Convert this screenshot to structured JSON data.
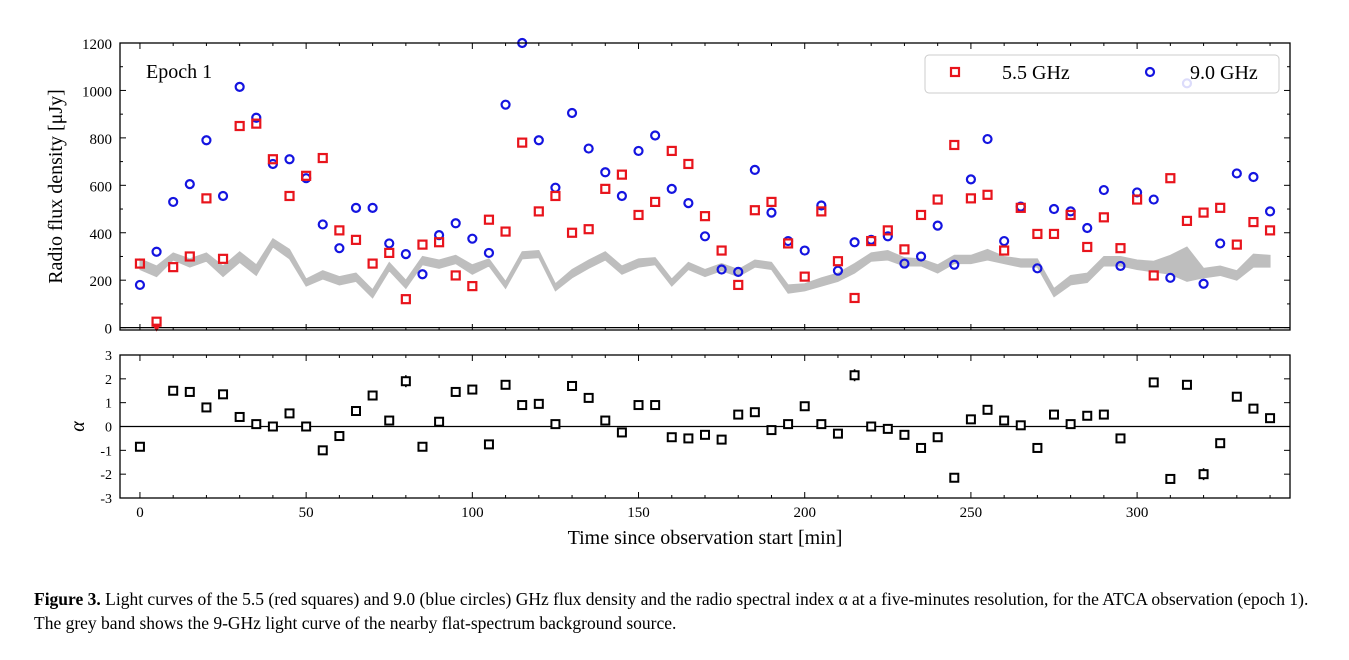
{
  "figure": {
    "caption_label": "Figure 3.",
    "caption_text": "Light curves of the 5.5 (red squares) and 9.0 (blue circles) GHz flux density and the radio spectral index α at a five-minutes resolution, for the ATCA observation (epoch 1). The grey band shows the 9-GHz light curve of the nearby flat-spectrum background source."
  },
  "chart_data": [
    {
      "type": "scatter",
      "annotation": "Epoch 1",
      "ylabel": "Radio flux density [μJy]",
      "xlim": [
        -6,
        346
      ],
      "ylim": [
        -10,
        1200
      ],
      "yticks": [
        0,
        200,
        400,
        600,
        800,
        1000,
        1200
      ],
      "xticks": [
        0,
        50,
        100,
        150,
        200,
        250,
        300
      ],
      "legend": "top-right",
      "grid": false,
      "colors": {
        "s55": "#e8141c",
        "s90": "#1414e0",
        "band": "#bebebe"
      },
      "series": [
        {
          "name": "5.5 GHz",
          "marker": "square",
          "x": [
            0,
            5,
            10,
            15,
            20,
            25,
            30,
            35,
            40,
            45,
            50,
            55,
            60,
            65,
            70,
            75,
            80,
            85,
            90,
            95,
            100,
            105,
            110,
            115,
            120,
            125,
            130,
            135,
            140,
            145,
            150,
            155,
            160,
            165,
            170,
            175,
            180,
            185,
            190,
            195,
            200,
            205,
            210,
            215,
            220,
            225,
            230,
            235,
            240,
            245,
            250,
            255,
            260,
            265,
            270,
            275,
            280,
            285,
            290,
            295,
            300,
            305,
            310,
            315,
            320,
            325,
            330,
            335,
            340
          ],
          "y": [
            270,
            25,
            255,
            300,
            545,
            290,
            850,
            860,
            710,
            555,
            640,
            715,
            410,
            370,
            270,
            315,
            120,
            350,
            360,
            220,
            175,
            455,
            405,
            780,
            490,
            555,
            400,
            415,
            585,
            645,
            475,
            530,
            745,
            690,
            470,
            325,
            180,
            495,
            530,
            355,
            215,
            490,
            280,
            125,
            365,
            410,
            330,
            475,
            540,
            770,
            545,
            560,
            325,
            505,
            395,
            395,
            475,
            340,
            465,
            335,
            540,
            220,
            630,
            450,
            485,
            505,
            350,
            445,
            410
          ]
        },
        {
          "name": "9.0 GHz",
          "marker": "circle",
          "x": [
            0,
            5,
            10,
            15,
            20,
            25,
            30,
            35,
            40,
            45,
            50,
            55,
            60,
            65,
            70,
            75,
            80,
            85,
            90,
            95,
            100,
            105,
            110,
            115,
            120,
            125,
            130,
            135,
            140,
            145,
            150,
            155,
            160,
            165,
            170,
            175,
            180,
            185,
            190,
            195,
            200,
            205,
            210,
            215,
            220,
            225,
            230,
            235,
            240,
            245,
            250,
            255,
            260,
            265,
            270,
            275,
            280,
            285,
            290,
            295,
            300,
            305,
            310,
            315,
            320,
            325,
            330,
            335,
            340
          ],
          "y": [
            180,
            320,
            530,
            605,
            790,
            555,
            1015,
            885,
            690,
            710,
            630,
            435,
            335,
            505,
            505,
            355,
            310,
            225,
            390,
            440,
            375,
            315,
            940,
            1200,
            790,
            590,
            905,
            755,
            655,
            555,
            745,
            810,
            585,
            525,
            385,
            245,
            235,
            665,
            485,
            365,
            325,
            515,
            240,
            360,
            370,
            385,
            270,
            300,
            430,
            265,
            625,
            795,
            365,
            510,
            250,
            500,
            490,
            420,
            580,
            260,
            570,
            540,
            210,
            1030,
            185,
            355,
            650,
            635,
            490
          ]
        }
      ],
      "band": {
        "name": "background source (9 GHz)",
        "x": [
          0,
          5,
          10,
          15,
          20,
          25,
          30,
          35,
          40,
          45,
          50,
          55,
          60,
          65,
          70,
          75,
          80,
          85,
          90,
          95,
          100,
          105,
          110,
          115,
          120,
          125,
          130,
          135,
          140,
          145,
          150,
          155,
          160,
          165,
          170,
          175,
          180,
          185,
          190,
          195,
          200,
          205,
          210,
          215,
          220,
          225,
          230,
          235,
          240,
          245,
          250,
          255,
          260,
          265,
          270,
          275,
          280,
          285,
          290,
          295,
          300,
          305,
          310,
          315,
          320,
          325,
          330,
          335,
          340
        ],
        "low": [
          245,
          215,
          285,
          255,
          280,
          215,
          275,
          220,
          340,
          290,
          175,
          205,
          180,
          195,
          125,
          240,
          165,
          265,
          250,
          270,
          225,
          260,
          165,
          290,
          295,
          155,
          210,
          250,
          285,
          225,
          255,
          265,
          175,
          245,
          215,
          240,
          215,
          255,
          245,
          145,
          155,
          175,
          195,
          230,
          280,
          285,
          260,
          260,
          230,
          270,
          270,
          285,
          270,
          255,
          255,
          130,
          180,
          190,
          260,
          260,
          245,
          235,
          225,
          195,
          210,
          220,
          200,
          255,
          255
        ],
        "high": [
          290,
          260,
          315,
          290,
          315,
          260,
          320,
          265,
          375,
          330,
          205,
          240,
          215,
          230,
          160,
          275,
          200,
          300,
          285,
          305,
          265,
          290,
          195,
          320,
          325,
          185,
          245,
          285,
          320,
          260,
          290,
          295,
          205,
          275,
          245,
          270,
          245,
          285,
          275,
          180,
          185,
          210,
          230,
          270,
          315,
          325,
          295,
          290,
          265,
          305,
          305,
          330,
          300,
          290,
          290,
          165,
          220,
          230,
          300,
          300,
          285,
          280,
          305,
          340,
          250,
          260,
          240,
          310,
          305
        ]
      }
    },
    {
      "type": "scatter",
      "ylabel": "α",
      "xlabel": "Time since observation start [min]",
      "xlim": [
        -6,
        346
      ],
      "ylim": [
        -3,
        3
      ],
      "yticks": [
        -3,
        -2,
        -1,
        0,
        1,
        2,
        3
      ],
      "xticks": [
        0,
        50,
        100,
        150,
        200,
        250,
        300
      ],
      "legend": "none",
      "grid": false,
      "series": [
        {
          "marker": "square-open-black",
          "x": [
            0,
            10,
            15,
            20,
            25,
            30,
            35,
            40,
            45,
            50,
            55,
            60,
            65,
            70,
            75,
            80,
            85,
            90,
            95,
            100,
            105,
            110,
            115,
            120,
            125,
            130,
            135,
            140,
            145,
            150,
            155,
            160,
            165,
            170,
            175,
            180,
            185,
            190,
            195,
            200,
            205,
            210,
            215,
            220,
            225,
            230,
            235,
            240,
            245,
            250,
            255,
            260,
            265,
            270,
            275,
            280,
            285,
            290,
            295,
            305,
            310,
            315,
            320,
            325,
            330,
            335,
            340
          ],
          "y": [
            -0.85,
            1.5,
            1.45,
            0.8,
            1.35,
            0.4,
            0.1,
            0.0,
            0.55,
            0.0,
            -1.0,
            -0.4,
            0.65,
            1.3,
            0.25,
            1.9,
            -0.85,
            0.2,
            1.45,
            1.55,
            -0.75,
            1.75,
            0.9,
            0.95,
            0.1,
            1.7,
            1.2,
            0.25,
            -0.25,
            0.9,
            0.9,
            -0.45,
            -0.5,
            -0.35,
            -0.55,
            0.5,
            0.6,
            -0.15,
            0.1,
            0.85,
            0.1,
            -0.3,
            2.15,
            0.0,
            -0.1,
            -0.35,
            -0.9,
            -0.45,
            -2.15,
            0.3,
            0.7,
            0.25,
            0.05,
            -0.9,
            0.5,
            0.1,
            0.45,
            0.5,
            -0.5,
            1.85,
            -2.2,
            1.75,
            -2.0,
            -0.7,
            1.25,
            0.75,
            0.35
          ],
          "err": [
            0.12,
            0.1,
            0.1,
            0.1,
            0.1,
            0.1,
            0.1,
            0.1,
            0.1,
            0.1,
            0.1,
            0.1,
            0.1,
            0.1,
            0.1,
            0.25,
            0.1,
            0.1,
            0.1,
            0.15,
            0.1,
            0.1,
            0.1,
            0.1,
            0.1,
            0.1,
            0.1,
            0.1,
            0.1,
            0.1,
            0.1,
            0.1,
            0.1,
            0.1,
            0.1,
            0.1,
            0.1,
            0.1,
            0.1,
            0.1,
            0.1,
            0.1,
            0.25,
            0.1,
            0.1,
            0.1,
            0.1,
            0.1,
            0.2,
            0.1,
            0.1,
            0.1,
            0.1,
            0.1,
            0.1,
            0.1,
            0.1,
            0.1,
            0.1,
            0.2,
            0.2,
            0.12,
            0.25,
            0.1,
            0.12,
            0.1,
            0.1
          ]
        }
      ]
    }
  ]
}
